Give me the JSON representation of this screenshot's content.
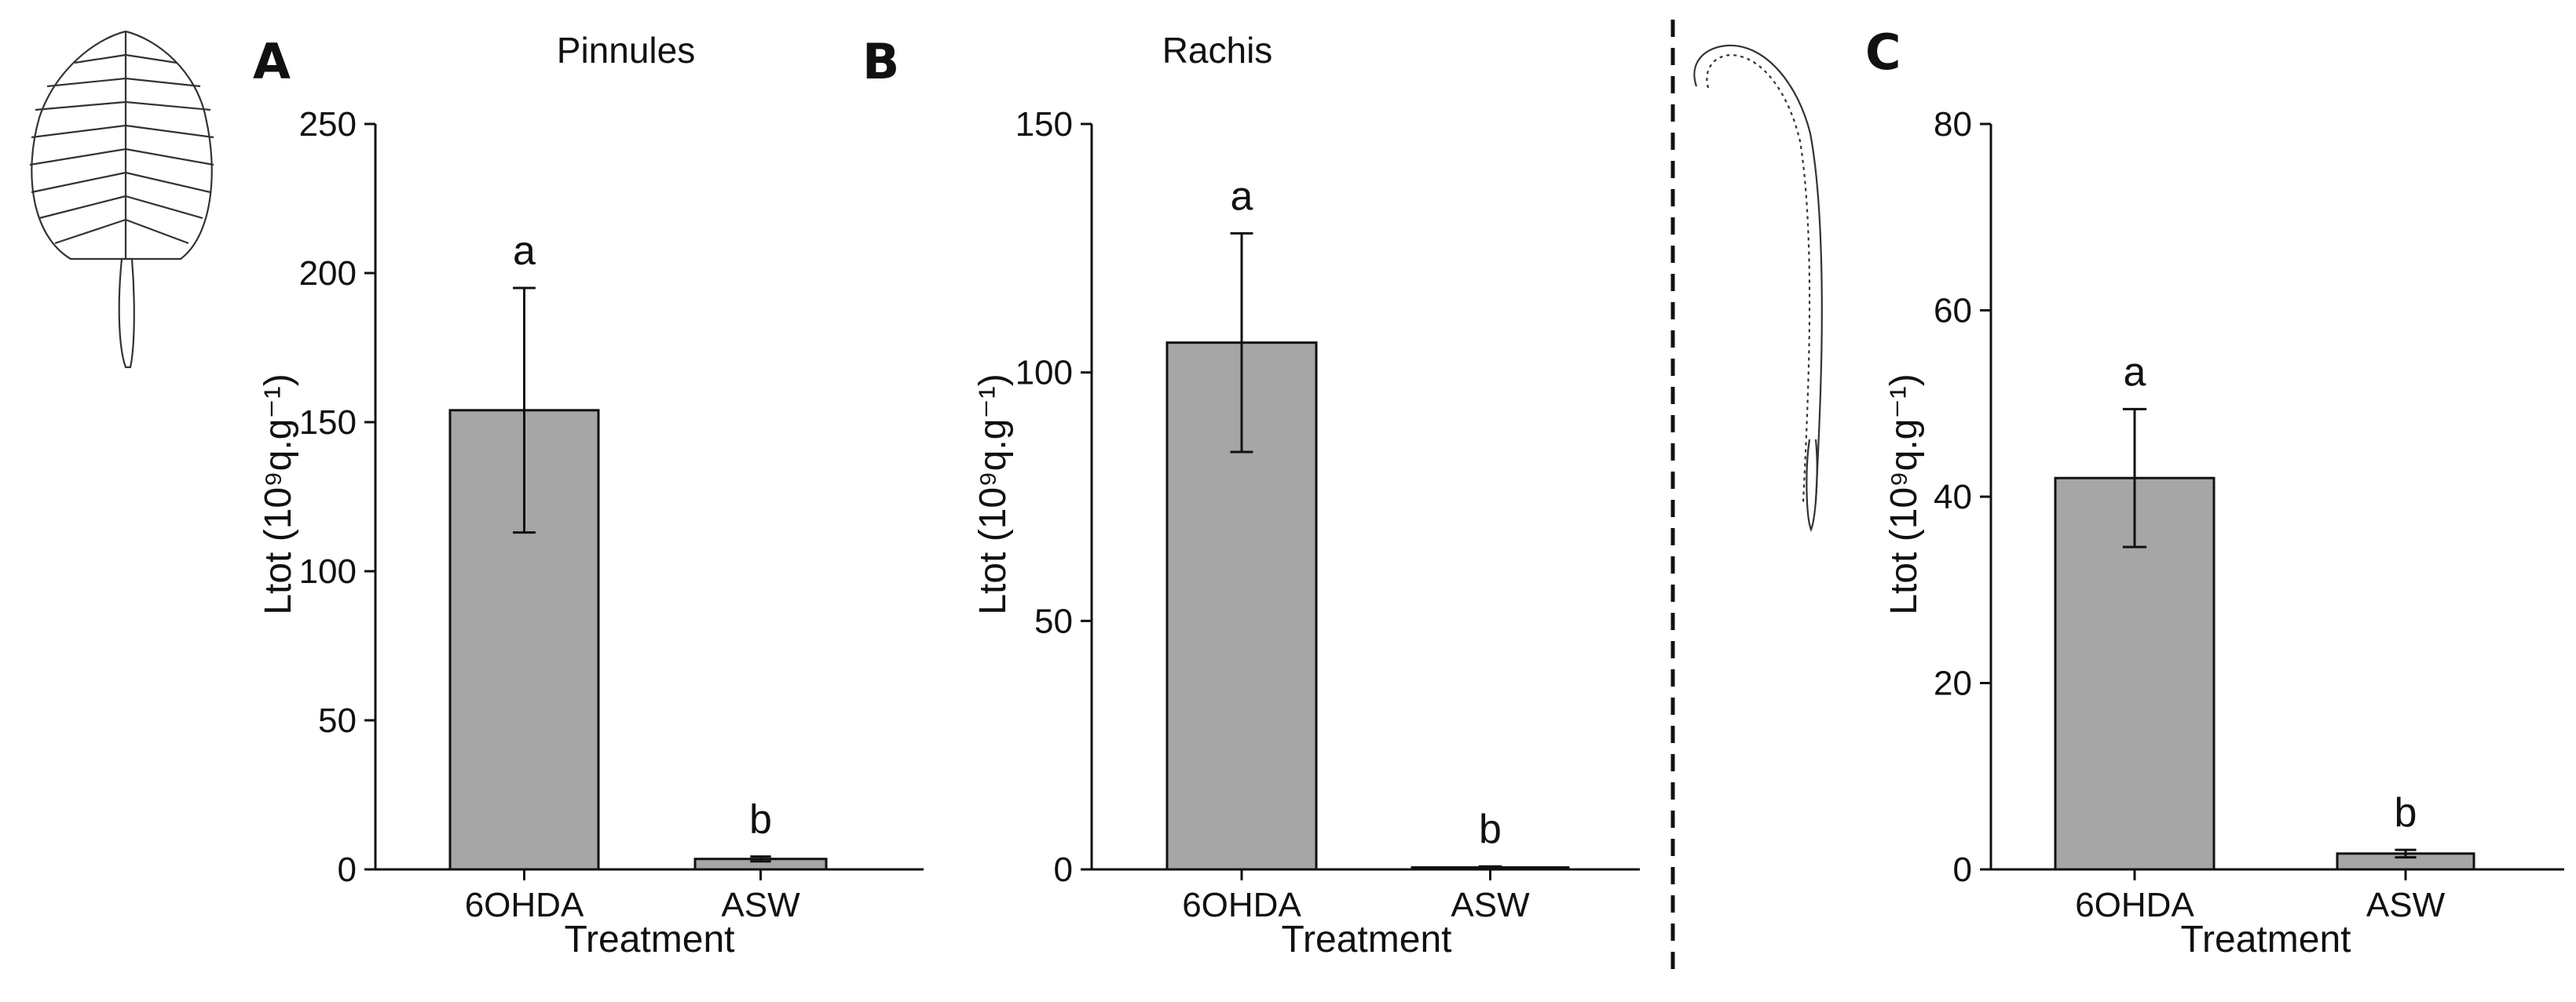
{
  "colors": {
    "bar_fill": "#a6a6a6",
    "bar_stroke": "#111111",
    "axis": "#111111"
  },
  "chart_data": [
    {
      "type": "bar",
      "panel": "A",
      "title": "Pinnules",
      "xlabel": "Treatment",
      "ylabel": "Ltot (10⁹q.g⁻¹)",
      "categories": [
        "6OHDA",
        "ASW"
      ],
      "values": [
        154,
        3.5
      ],
      "errors": [
        41,
        0.8
      ],
      "sig_letters": [
        "a",
        "b"
      ],
      "ylim": [
        0,
        250
      ],
      "yticks": [
        0,
        50,
        100,
        150,
        200,
        250
      ],
      "grid": false
    },
    {
      "type": "bar",
      "panel": "B",
      "title": "Rachis",
      "xlabel": "Treatment",
      "ylabel": "Ltot (10⁹q.g⁻¹)",
      "categories": [
        "6OHDA",
        "ASW"
      ],
      "values": [
        106,
        0.4
      ],
      "errors": [
        22,
        0.2
      ],
      "sig_letters": [
        "a",
        "b"
      ],
      "ylim": [
        0,
        150
      ],
      "yticks": [
        0,
        50,
        100,
        150
      ],
      "grid": false
    },
    {
      "type": "bar",
      "panel": "C",
      "title": "",
      "xlabel": "Treatment",
      "ylabel": "Ltot (10⁹q.g⁻¹)",
      "categories": [
        "6OHDA",
        "ASW"
      ],
      "values": [
        42,
        1.7
      ],
      "errors": [
        7.4,
        0.4
      ],
      "sig_letters": [
        "a",
        "b"
      ],
      "ylim": [
        0,
        80
      ],
      "yticks": [
        0,
        20,
        40,
        60,
        80
      ],
      "grid": false
    }
  ]
}
